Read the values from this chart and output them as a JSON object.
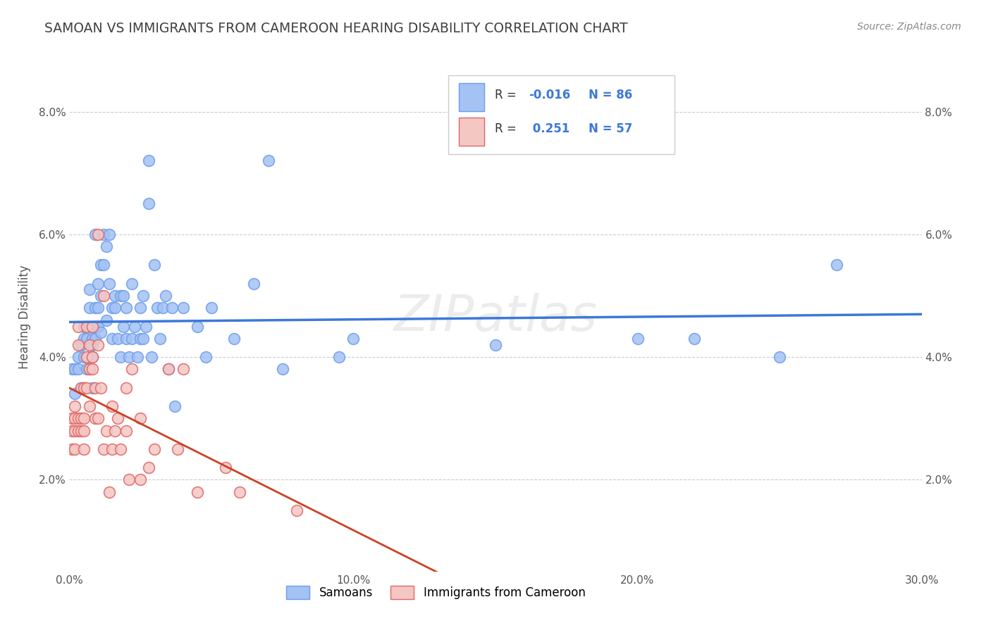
{
  "title": "SAMOAN VS IMMIGRANTS FROM CAMEROON HEARING DISABILITY CORRELATION CHART",
  "source": "Source: ZipAtlas.com",
  "ylabel": "Hearing Disability",
  "xmin": 0.0,
  "xmax": 0.3,
  "ymin": 0.005,
  "ymax": 0.088,
  "yticks": [
    0.02,
    0.04,
    0.06,
    0.08
  ],
  "ytick_labels": [
    "2.0%",
    "4.0%",
    "6.0%",
    "8.0%"
  ],
  "watermark": "ZIPatlas",
  "legend_blue_label": "Samoans",
  "legend_pink_label": "Immigrants from Cameroon",
  "blue_R": -0.016,
  "blue_N": 86,
  "pink_R": 0.251,
  "pink_N": 57,
  "blue_color": "#a4c2f4",
  "pink_color": "#f4c7c3",
  "blue_edge_color": "#6d9eeb",
  "pink_edge_color": "#e06666",
  "blue_line_color": "#3c78d8",
  "pink_line_color": "#cc4125",
  "blue_scatter": [
    [
      0.001,
      0.038
    ],
    [
      0.002,
      0.038
    ],
    [
      0.002,
      0.034
    ],
    [
      0.003,
      0.04
    ],
    [
      0.003,
      0.038
    ],
    [
      0.004,
      0.035
    ],
    [
      0.004,
      0.042
    ],
    [
      0.004,
      0.042
    ],
    [
      0.005,
      0.04
    ],
    [
      0.005,
      0.035
    ],
    [
      0.005,
      0.043
    ],
    [
      0.005,
      0.045
    ],
    [
      0.006,
      0.04
    ],
    [
      0.006,
      0.038
    ],
    [
      0.006,
      0.043
    ],
    [
      0.007,
      0.038
    ],
    [
      0.007,
      0.048
    ],
    [
      0.007,
      0.051
    ],
    [
      0.007,
      0.045
    ],
    [
      0.008,
      0.042
    ],
    [
      0.008,
      0.04
    ],
    [
      0.008,
      0.035
    ],
    [
      0.008,
      0.043
    ],
    [
      0.009,
      0.06
    ],
    [
      0.009,
      0.045
    ],
    [
      0.009,
      0.048
    ],
    [
      0.009,
      0.043
    ],
    [
      0.01,
      0.048
    ],
    [
      0.01,
      0.052
    ],
    [
      0.01,
      0.045
    ],
    [
      0.011,
      0.055
    ],
    [
      0.011,
      0.05
    ],
    [
      0.011,
      0.044
    ],
    [
      0.012,
      0.06
    ],
    [
      0.012,
      0.055
    ],
    [
      0.013,
      0.058
    ],
    [
      0.013,
      0.046
    ],
    [
      0.014,
      0.06
    ],
    [
      0.014,
      0.052
    ],
    [
      0.015,
      0.048
    ],
    [
      0.015,
      0.043
    ],
    [
      0.016,
      0.05
    ],
    [
      0.016,
      0.048
    ],
    [
      0.017,
      0.043
    ],
    [
      0.018,
      0.04
    ],
    [
      0.018,
      0.05
    ],
    [
      0.019,
      0.05
    ],
    [
      0.019,
      0.045
    ],
    [
      0.02,
      0.043
    ],
    [
      0.02,
      0.048
    ],
    [
      0.021,
      0.04
    ],
    [
      0.022,
      0.052
    ],
    [
      0.022,
      0.043
    ],
    [
      0.023,
      0.045
    ],
    [
      0.024,
      0.04
    ],
    [
      0.025,
      0.048
    ],
    [
      0.025,
      0.043
    ],
    [
      0.026,
      0.05
    ],
    [
      0.026,
      0.043
    ],
    [
      0.027,
      0.045
    ],
    [
      0.028,
      0.072
    ],
    [
      0.028,
      0.065
    ],
    [
      0.029,
      0.04
    ],
    [
      0.03,
      0.055
    ],
    [
      0.031,
      0.048
    ],
    [
      0.032,
      0.043
    ],
    [
      0.033,
      0.048
    ],
    [
      0.034,
      0.05
    ],
    [
      0.035,
      0.038
    ],
    [
      0.036,
      0.048
    ],
    [
      0.037,
      0.032
    ],
    [
      0.04,
      0.048
    ],
    [
      0.045,
      0.045
    ],
    [
      0.048,
      0.04
    ],
    [
      0.05,
      0.048
    ],
    [
      0.058,
      0.043
    ],
    [
      0.065,
      0.052
    ],
    [
      0.07,
      0.072
    ],
    [
      0.075,
      0.038
    ],
    [
      0.095,
      0.04
    ],
    [
      0.1,
      0.043
    ],
    [
      0.15,
      0.042
    ],
    [
      0.2,
      0.043
    ],
    [
      0.22,
      0.043
    ],
    [
      0.25,
      0.04
    ],
    [
      0.27,
      0.055
    ]
  ],
  "pink_scatter": [
    [
      0.001,
      0.028
    ],
    [
      0.001,
      0.03
    ],
    [
      0.001,
      0.025
    ],
    [
      0.002,
      0.03
    ],
    [
      0.002,
      0.028
    ],
    [
      0.002,
      0.025
    ],
    [
      0.002,
      0.032
    ],
    [
      0.003,
      0.028
    ],
    [
      0.003,
      0.03
    ],
    [
      0.003,
      0.045
    ],
    [
      0.003,
      0.042
    ],
    [
      0.004,
      0.035
    ],
    [
      0.004,
      0.03
    ],
    [
      0.004,
      0.028
    ],
    [
      0.005,
      0.035
    ],
    [
      0.005,
      0.03
    ],
    [
      0.005,
      0.028
    ],
    [
      0.005,
      0.025
    ],
    [
      0.006,
      0.045
    ],
    [
      0.006,
      0.04
    ],
    [
      0.006,
      0.035
    ],
    [
      0.007,
      0.042
    ],
    [
      0.007,
      0.038
    ],
    [
      0.007,
      0.032
    ],
    [
      0.008,
      0.045
    ],
    [
      0.008,
      0.04
    ],
    [
      0.008,
      0.038
    ],
    [
      0.009,
      0.035
    ],
    [
      0.009,
      0.03
    ],
    [
      0.01,
      0.06
    ],
    [
      0.01,
      0.042
    ],
    [
      0.01,
      0.03
    ],
    [
      0.011,
      0.035
    ],
    [
      0.012,
      0.05
    ],
    [
      0.012,
      0.025
    ],
    [
      0.013,
      0.028
    ],
    [
      0.014,
      0.018
    ],
    [
      0.015,
      0.025
    ],
    [
      0.015,
      0.032
    ],
    [
      0.016,
      0.028
    ],
    [
      0.017,
      0.03
    ],
    [
      0.018,
      0.025
    ],
    [
      0.02,
      0.035
    ],
    [
      0.02,
      0.028
    ],
    [
      0.021,
      0.02
    ],
    [
      0.022,
      0.038
    ],
    [
      0.025,
      0.03
    ],
    [
      0.025,
      0.02
    ],
    [
      0.028,
      0.022
    ],
    [
      0.03,
      0.025
    ],
    [
      0.035,
      0.038
    ],
    [
      0.038,
      0.025
    ],
    [
      0.04,
      0.038
    ],
    [
      0.045,
      0.018
    ],
    [
      0.055,
      0.022
    ],
    [
      0.06,
      0.018
    ],
    [
      0.08,
      0.015
    ]
  ],
  "background_color": "#ffffff",
  "grid_color": "#cccccc",
  "title_color": "#404040",
  "source_color": "#888888",
  "legend_text_color": "#3c78d8"
}
